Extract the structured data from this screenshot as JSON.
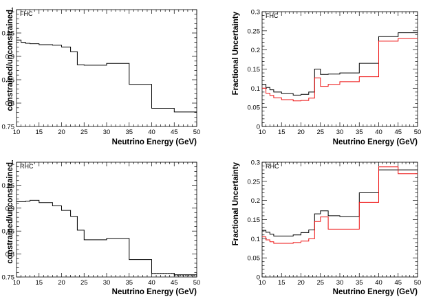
{
  "chart_data": [
    {
      "type": "step",
      "label": "FHC",
      "ylabel": "constrained/unconstrained",
      "xlabel": "Neutrino Energy (GeV)",
      "xlim": [
        10,
        50
      ],
      "ylim": [
        0.75,
        1.0
      ],
      "xticks": [
        10,
        15,
        20,
        25,
        30,
        35,
        40,
        45,
        50
      ],
      "yticks": [
        0.75,
        0.8,
        0.85,
        0.9,
        0.95,
        1
      ],
      "ytick_labels": [
        "0.75",
        "0.8",
        "0.85",
        "0.9",
        "0.95",
        "1"
      ],
      "bin_edges": [
        10,
        11,
        12,
        13,
        15,
        18,
        20,
        22,
        23.5,
        25,
        27,
        30,
        35,
        40,
        45,
        50
      ],
      "series": [
        {
          "color": "#000000",
          "values": [
            0.935,
            0.93,
            0.928,
            0.927,
            0.925,
            0.924,
            0.92,
            0.91,
            0.882,
            0.881,
            0.881,
            0.885,
            0.84,
            0.789,
            0.781
          ]
        }
      ]
    },
    {
      "type": "step",
      "label": "FHC",
      "ylabel": "Fractional Uncertainty",
      "xlabel": "Neutrino Energy (GeV)",
      "xlim": [
        10,
        50
      ],
      "ylim": [
        0,
        0.3
      ],
      "xticks": [
        10,
        15,
        20,
        25,
        30,
        35,
        40,
        45,
        50
      ],
      "yticks": [
        0,
        0.05,
        0.1,
        0.15,
        0.2,
        0.25,
        0.3
      ],
      "ytick_labels": [
        "0",
        "0.05",
        "0.1",
        "0.15",
        "0.2",
        "0.25",
        "0.3"
      ],
      "bin_edges": [
        10,
        11,
        12,
        13,
        15,
        18,
        20,
        22,
        23.5,
        25,
        27,
        30,
        35,
        40,
        45,
        50
      ],
      "series": [
        {
          "color": "#000000",
          "values": [
            0.11,
            0.102,
            0.096,
            0.09,
            0.086,
            0.082,
            0.084,
            0.09,
            0.15,
            0.136,
            0.137,
            0.14,
            0.165,
            0.235,
            0.245
          ]
        },
        {
          "color": "#ee1111",
          "values": [
            0.1,
            0.087,
            0.081,
            0.075,
            0.07,
            0.067,
            0.068,
            0.074,
            0.127,
            0.105,
            0.11,
            0.117,
            0.13,
            0.223,
            0.23
          ]
        }
      ]
    },
    {
      "type": "step",
      "label": "RHC",
      "ylabel": "constrained/unconstrained",
      "xlabel": "Neutrino Energy (GeV)",
      "xlim": [
        10,
        50
      ],
      "ylim": [
        0.75,
        1.0
      ],
      "xticks": [
        10,
        15,
        20,
        25,
        30,
        35,
        40,
        45,
        50
      ],
      "yticks": [
        0.75,
        0.8,
        0.85,
        0.9,
        0.95,
        1
      ],
      "ytick_labels": [
        "0.75",
        "0.8",
        "0.85",
        "0.9",
        "0.95",
        "1"
      ],
      "bin_edges": [
        10,
        11,
        12,
        13,
        15,
        18,
        20,
        22,
        23.5,
        25,
        27,
        30,
        35,
        40,
        45,
        50
      ],
      "series": [
        {
          "color": "#000000",
          "values": [
            0.914,
            0.914,
            0.915,
            0.917,
            0.912,
            0.905,
            0.895,
            0.882,
            0.852,
            0.831,
            0.831,
            0.834,
            0.788,
            0.758,
            0.755
          ]
        },
        {
          "color": "#000000",
          "dashed": true,
          "values": [
            null,
            null,
            null,
            null,
            null,
            null,
            null,
            null,
            null,
            null,
            null,
            null,
            null,
            0.758,
            0.753
          ]
        }
      ]
    },
    {
      "type": "step",
      "label": "RHC",
      "ylabel": "Fractional Uncertainty",
      "xlabel": "Neutrino Energy (GeV)",
      "xlim": [
        10,
        50
      ],
      "ylim": [
        0,
        0.3
      ],
      "xticks": [
        10,
        15,
        20,
        25,
        30,
        35,
        40,
        45,
        50
      ],
      "yticks": [
        0,
        0.05,
        0.1,
        0.15,
        0.2,
        0.25,
        0.3
      ],
      "ytick_labels": [
        "0",
        "0.05",
        "0.1",
        "0.15",
        "0.2",
        "0.25",
        "0.3"
      ],
      "bin_edges": [
        10,
        11,
        12,
        13,
        15,
        18,
        20,
        22,
        23.5,
        25,
        27,
        30,
        35,
        40,
        45,
        50
      ],
      "series": [
        {
          "color": "#000000",
          "values": [
            0.122,
            0.117,
            0.112,
            0.107,
            0.107,
            0.11,
            0.116,
            0.123,
            0.165,
            0.173,
            0.16,
            0.158,
            0.22,
            0.28,
            0.28
          ]
        },
        {
          "color": "#ee1111",
          "values": [
            0.105,
            0.097,
            0.092,
            0.088,
            0.088,
            0.09,
            0.094,
            0.1,
            0.145,
            0.157,
            0.125,
            0.125,
            0.195,
            0.288,
            0.27
          ]
        }
      ]
    }
  ]
}
